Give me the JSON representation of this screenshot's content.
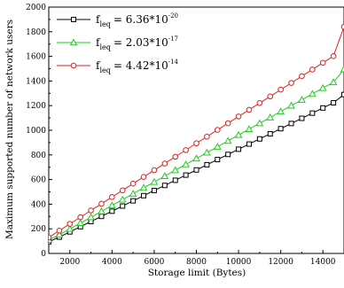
{
  "chart_data": {
    "type": "line",
    "title": "",
    "xlabel": "Storage limit (Bytes)",
    "ylabel": "Maximum supported number of network users",
    "xlim": [
      1000,
      15000
    ],
    "ylim": [
      0,
      2000
    ],
    "x_ticks": [
      "2000",
      "4000",
      "6000",
      "8000",
      "10000",
      "12000",
      "14000"
    ],
    "y_ticks": [
      "0",
      "200",
      "400",
      "600",
      "800",
      "1000",
      "1200",
      "1400",
      "1600",
      "1800",
      "2000"
    ],
    "grid": false,
    "legend_position": "top-left",
    "x": [
      1000,
      1500,
      2000,
      2500,
      3000,
      3500,
      4000,
      4500,
      5000,
      5500,
      6000,
      6500,
      7000,
      7500,
      8000,
      8500,
      9000,
      9500,
      10000,
      10500,
      11000,
      11500,
      12000,
      12500,
      13000,
      13500,
      14000,
      14500,
      15000
    ],
    "series": [
      {
        "name_base": "f",
        "name_sub": "leq",
        "name_value": "= 6.36*10",
        "name_exp": "-20",
        "marker": "square",
        "color": "#000000",
        "values": [
          95,
          133,
          175,
          217,
          259,
          301,
          343,
          385,
          427,
          469,
          511,
          552,
          594,
          636,
          678,
          720,
          762,
          804,
          846,
          888,
          930,
          971,
          1013,
          1055,
          1097,
          1139,
          1181,
          1223,
          1290
        ]
      },
      {
        "name_base": "f",
        "name_sub": "leq",
        "name_value": "= 2.03*10",
        "name_exp": "-17",
        "marker": "triangle",
        "color": "#22cc22",
        "values": [
          110,
          152,
          199,
          247,
          294,
          342,
          390,
          437,
          485,
          533,
          580,
          628,
          676,
          723,
          771,
          819,
          866,
          914,
          962,
          1009,
          1057,
          1104,
          1152,
          1200,
          1247,
          1295,
          1343,
          1390,
          1495
        ]
      },
      {
        "name_base": "f",
        "name_sub": "leq",
        "name_value": "= 4.42*10",
        "name_exp": "-14",
        "marker": "circle",
        "color": "#dd2222",
        "values": [
          130,
          185,
          240,
          294,
          349,
          403,
          458,
          512,
          567,
          621,
          676,
          730,
          785,
          839,
          894,
          948,
          1003,
          1057,
          1112,
          1166,
          1221,
          1275,
          1330,
          1384,
          1439,
          1493,
          1548,
          1602,
          1840
        ]
      }
    ]
  }
}
